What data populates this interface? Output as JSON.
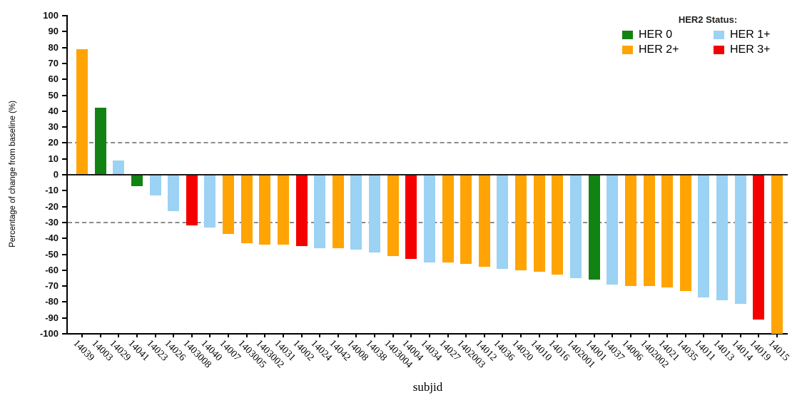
{
  "chart_data": {
    "type": "bar",
    "variant": "waterfall",
    "title": "",
    "xlabel": "subjid",
    "ylabel": "Percentage of change from baseline (%)",
    "ylim": [
      -100,
      100
    ],
    "yticks": [
      100,
      90,
      80,
      70,
      60,
      50,
      40,
      30,
      20,
      10,
      0,
      -10,
      -20,
      -30,
      -40,
      -50,
      -60,
      -70,
      -80,
      -90,
      -100
    ],
    "grid": false,
    "reference_lines": {
      "values": [
        20,
        -30
      ],
      "style": "dashed",
      "color": "#8c8c8c"
    },
    "legend": {
      "title": "HER2 Status:",
      "position": "top-right",
      "entries": [
        {
          "label": "HER 0",
          "color": "#128312"
        },
        {
          "label": "HER 1+",
          "color": "#9cd2f4"
        },
        {
          "label": "HER 2+",
          "color": "#ffa404"
        },
        {
          "label": "HER 3+",
          "color": "#f40000"
        }
      ]
    },
    "status_colors": {
      "HER 0": "#128312",
      "HER 1+": "#9cd2f4",
      "HER 2+": "#ffa404",
      "HER 3+": "#f40000"
    },
    "bars": [
      {
        "subjid": "14039",
        "her2": "HER 2+",
        "value": 79
      },
      {
        "subjid": "14003",
        "her2": "HER 0",
        "value": 42
      },
      {
        "subjid": "14029",
        "her2": "HER 1+",
        "value": 9
      },
      {
        "subjid": "14041",
        "her2": "HER 0",
        "value": -7
      },
      {
        "subjid": "14023",
        "her2": "HER 1+",
        "value": -13
      },
      {
        "subjid": "14026",
        "her2": "HER 1+",
        "value": -23
      },
      {
        "subjid": "1403008",
        "her2": "HER 3+",
        "value": -32
      },
      {
        "subjid": "14040",
        "her2": "HER 1+",
        "value": -33
      },
      {
        "subjid": "14007",
        "her2": "HER 2+",
        "value": -37
      },
      {
        "subjid": "1403005",
        "her2": "HER 2+",
        "value": -43
      },
      {
        "subjid": "1403002",
        "her2": "HER 2+",
        "value": -44
      },
      {
        "subjid": "14031",
        "her2": "HER 2+",
        "value": -44
      },
      {
        "subjid": "14002",
        "her2": "HER 3+",
        "value": -45
      },
      {
        "subjid": "14024",
        "her2": "HER 1+",
        "value": -46
      },
      {
        "subjid": "14042",
        "her2": "HER 2+",
        "value": -46
      },
      {
        "subjid": "14008",
        "her2": "HER 1+",
        "value": -47
      },
      {
        "subjid": "14038",
        "her2": "HER 1+",
        "value": -49
      },
      {
        "subjid": "1403004",
        "her2": "HER 2+",
        "value": -51
      },
      {
        "subjid": "14004",
        "her2": "HER 3+",
        "value": -53
      },
      {
        "subjid": "14034",
        "her2": "HER 1+",
        "value": -55
      },
      {
        "subjid": "14027",
        "her2": "HER 2+",
        "value": -55
      },
      {
        "subjid": "1402003",
        "her2": "HER 2+",
        "value": -56
      },
      {
        "subjid": "14012",
        "her2": "HER 2+",
        "value": -58
      },
      {
        "subjid": "14036",
        "her2": "HER 1+",
        "value": -59
      },
      {
        "subjid": "14020",
        "her2": "HER 2+",
        "value": -60
      },
      {
        "subjid": "14010",
        "her2": "HER 2+",
        "value": -61
      },
      {
        "subjid": "14016",
        "her2": "HER 2+",
        "value": -63
      },
      {
        "subjid": "1402001",
        "her2": "HER 1+",
        "value": -65
      },
      {
        "subjid": "14001",
        "her2": "HER 0",
        "value": -66
      },
      {
        "subjid": "14037",
        "her2": "HER 1+",
        "value": -69
      },
      {
        "subjid": "14006",
        "her2": "HER 2+",
        "value": -70
      },
      {
        "subjid": "1402002",
        "her2": "HER 2+",
        "value": -70
      },
      {
        "subjid": "14021",
        "her2": "HER 2+",
        "value": -71
      },
      {
        "subjid": "14035",
        "her2": "HER 2+",
        "value": -73
      },
      {
        "subjid": "14011",
        "her2": "HER 1+",
        "value": -77
      },
      {
        "subjid": "14013",
        "her2": "HER 1+",
        "value": -79
      },
      {
        "subjid": "14014",
        "her2": "HER 1+",
        "value": -81
      },
      {
        "subjid": "14019",
        "her2": "HER 3+",
        "value": -91
      },
      {
        "subjid": "14015",
        "her2": "HER 2+",
        "value": -100
      }
    ]
  }
}
